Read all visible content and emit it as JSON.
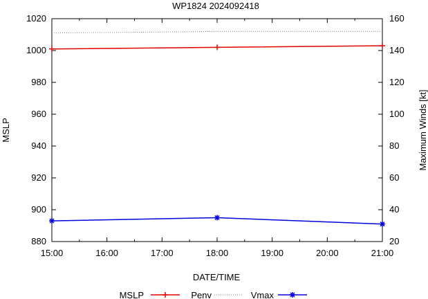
{
  "chart_data": {
    "type": "line",
    "title": "WP1824 2024092418",
    "xlabel": "DATE/TIME",
    "ylabel": "MSLP",
    "y2label": "Maximum Winds [kt]",
    "x_ticks": [
      "15:00",
      "16:00",
      "17:00",
      "18:00",
      "19:00",
      "20:00",
      "21:00"
    ],
    "x_range_hours": [
      15,
      21
    ],
    "ylim": [
      880,
      1020
    ],
    "y_ticks": [
      880,
      900,
      920,
      940,
      960,
      980,
      1000,
      1020
    ],
    "y2lim": [
      20,
      160
    ],
    "y2_ticks": [
      20,
      40,
      60,
      80,
      100,
      120,
      140,
      160
    ],
    "grid": false,
    "legend_position": "bottom",
    "legend_labels": [
      "MSLP",
      "Penv",
      "Vmax"
    ],
    "series": [
      {
        "name": "MSLP",
        "axis": "left",
        "color": "#e00000",
        "marker": "plus",
        "x": [
          15,
          18,
          21
        ],
        "values": [
          1001,
          1002,
          1003
        ]
      },
      {
        "name": "Penv",
        "axis": "left",
        "color": "#808080",
        "style": "dotted",
        "x": [
          15,
          18,
          21
        ],
        "values": [
          1011,
          1012,
          1012
        ]
      },
      {
        "name": "Vmax",
        "axis": "right",
        "color": "#0000e0",
        "marker": "star",
        "x": [
          15,
          18,
          21
        ],
        "values": [
          33,
          35,
          31
        ]
      }
    ]
  }
}
